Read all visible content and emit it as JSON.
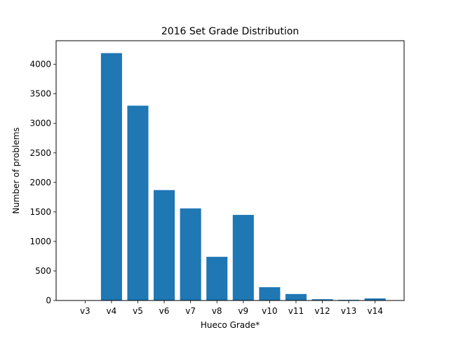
{
  "chart_data": {
    "type": "bar",
    "title": "2016 Set Grade Distribution",
    "xlabel": "Hueco Grade*",
    "ylabel": "Number of problems",
    "categories": [
      "v3",
      "v4",
      "v5",
      "v6",
      "v7",
      "v8",
      "v9",
      "v10",
      "v11",
      "v12",
      "v13",
      "v14"
    ],
    "values": [
      0,
      4190,
      3300,
      1870,
      1560,
      740,
      1450,
      225,
      110,
      22,
      12,
      35
    ],
    "ylim": [
      0,
      4400
    ],
    "yticks": [
      0,
      500,
      1000,
      1500,
      2000,
      2500,
      3000,
      3500,
      4000
    ],
    "ytick_labels": [
      "0",
      "500",
      "1000",
      "1500",
      "2000",
      "2500",
      "3000",
      "3500",
      "4000"
    ],
    "grid": false,
    "legend": "none",
    "bar_color": "#1f77b4"
  }
}
